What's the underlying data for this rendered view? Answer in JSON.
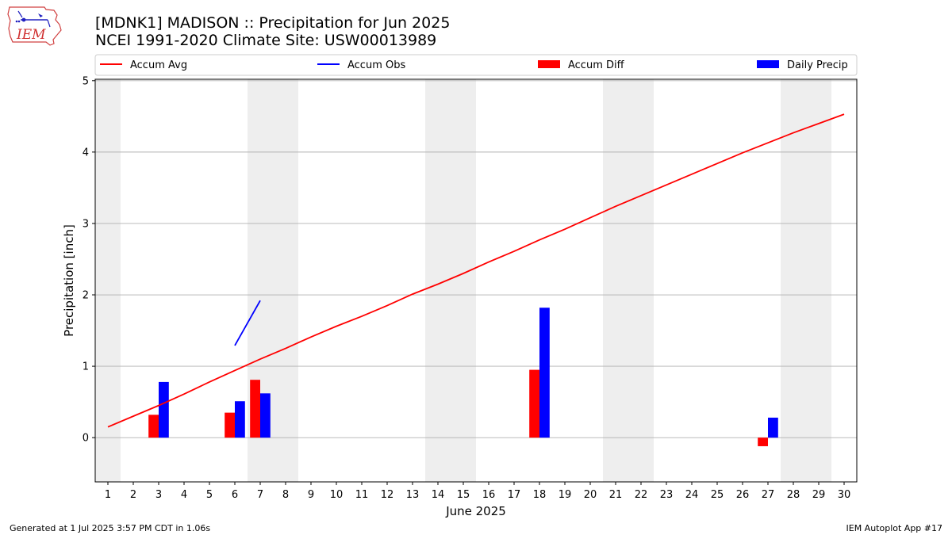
{
  "header": {
    "title_line1": "[MDNK1] MADISON :: Precipitation for Jun 2025",
    "title_line2": "NCEI 1991-2020 Climate Site: USW00013989",
    "logo_text": "IEM"
  },
  "footer": {
    "generated": "Generated at 1 Jul 2025 3:57 PM CDT in 1.06s",
    "app": "IEM Autoplot App #17"
  },
  "colors": {
    "accum_avg": "#ff0000",
    "accum_obs": "#0000ff",
    "accum_diff": "#ff0000",
    "daily_precip": "#0000ff",
    "weekend_shade": "#eeeeee",
    "grid": "#b0b0b0"
  },
  "chart_data": {
    "type": "bar",
    "xlabel": "June 2025",
    "ylabel": "Precipitation [inch]",
    "xlim": [
      0.5,
      30.5
    ],
    "ylim": [
      -0.62,
      5.02
    ],
    "x_ticks": [
      1,
      2,
      3,
      4,
      5,
      6,
      7,
      8,
      9,
      10,
      11,
      12,
      13,
      14,
      15,
      16,
      17,
      18,
      19,
      20,
      21,
      22,
      23,
      24,
      25,
      26,
      27,
      28,
      29,
      30
    ],
    "y_ticks": [
      0,
      1,
      2,
      3,
      4,
      5
    ],
    "grid": "y",
    "legend_position": "top",
    "legend": [
      {
        "label": "Accum Avg",
        "kind": "line",
        "color": "#ff0000"
      },
      {
        "label": "Accum Obs",
        "kind": "line",
        "color": "#0000ff"
      },
      {
        "label": "Accum Diff",
        "kind": "bar",
        "color": "#ff0000"
      },
      {
        "label": "Daily Precip",
        "kind": "bar",
        "color": "#0000ff"
      }
    ],
    "weekend_spans": [
      [
        0.5,
        1.5
      ],
      [
        6.5,
        8.5
      ],
      [
        13.5,
        15.5
      ],
      [
        20.5,
        22.5
      ],
      [
        27.5,
        29.5
      ]
    ],
    "accum_avg": {
      "x": [
        1,
        2,
        3,
        4,
        5,
        6,
        7,
        8,
        9,
        10,
        11,
        12,
        13,
        14,
        15,
        16,
        17,
        18,
        19,
        20,
        21,
        22,
        23,
        24,
        25,
        26,
        27,
        28,
        29,
        30
      ],
      "values": [
        0.15,
        0.3,
        0.45,
        0.61,
        0.78,
        0.94,
        1.1,
        1.25,
        1.41,
        1.56,
        1.7,
        1.85,
        2.01,
        2.15,
        2.3,
        2.46,
        2.61,
        2.77,
        2.92,
        3.08,
        3.24,
        3.39,
        3.54,
        3.69,
        3.84,
        3.99,
        4.13,
        4.27,
        4.4,
        4.53
      ]
    },
    "accum_obs": {
      "x": [
        6,
        7
      ],
      "values": [
        1.29,
        1.92
      ]
    },
    "accum_diff": {
      "x": [
        3,
        6,
        7,
        18,
        27
      ],
      "values": [
        0.32,
        0.35,
        0.81,
        0.95,
        -0.12
      ]
    },
    "daily_precip": {
      "x": [
        3,
        6,
        7,
        18,
        27
      ],
      "values": [
        0.78,
        0.51,
        0.62,
        1.82,
        0.28
      ]
    }
  }
}
